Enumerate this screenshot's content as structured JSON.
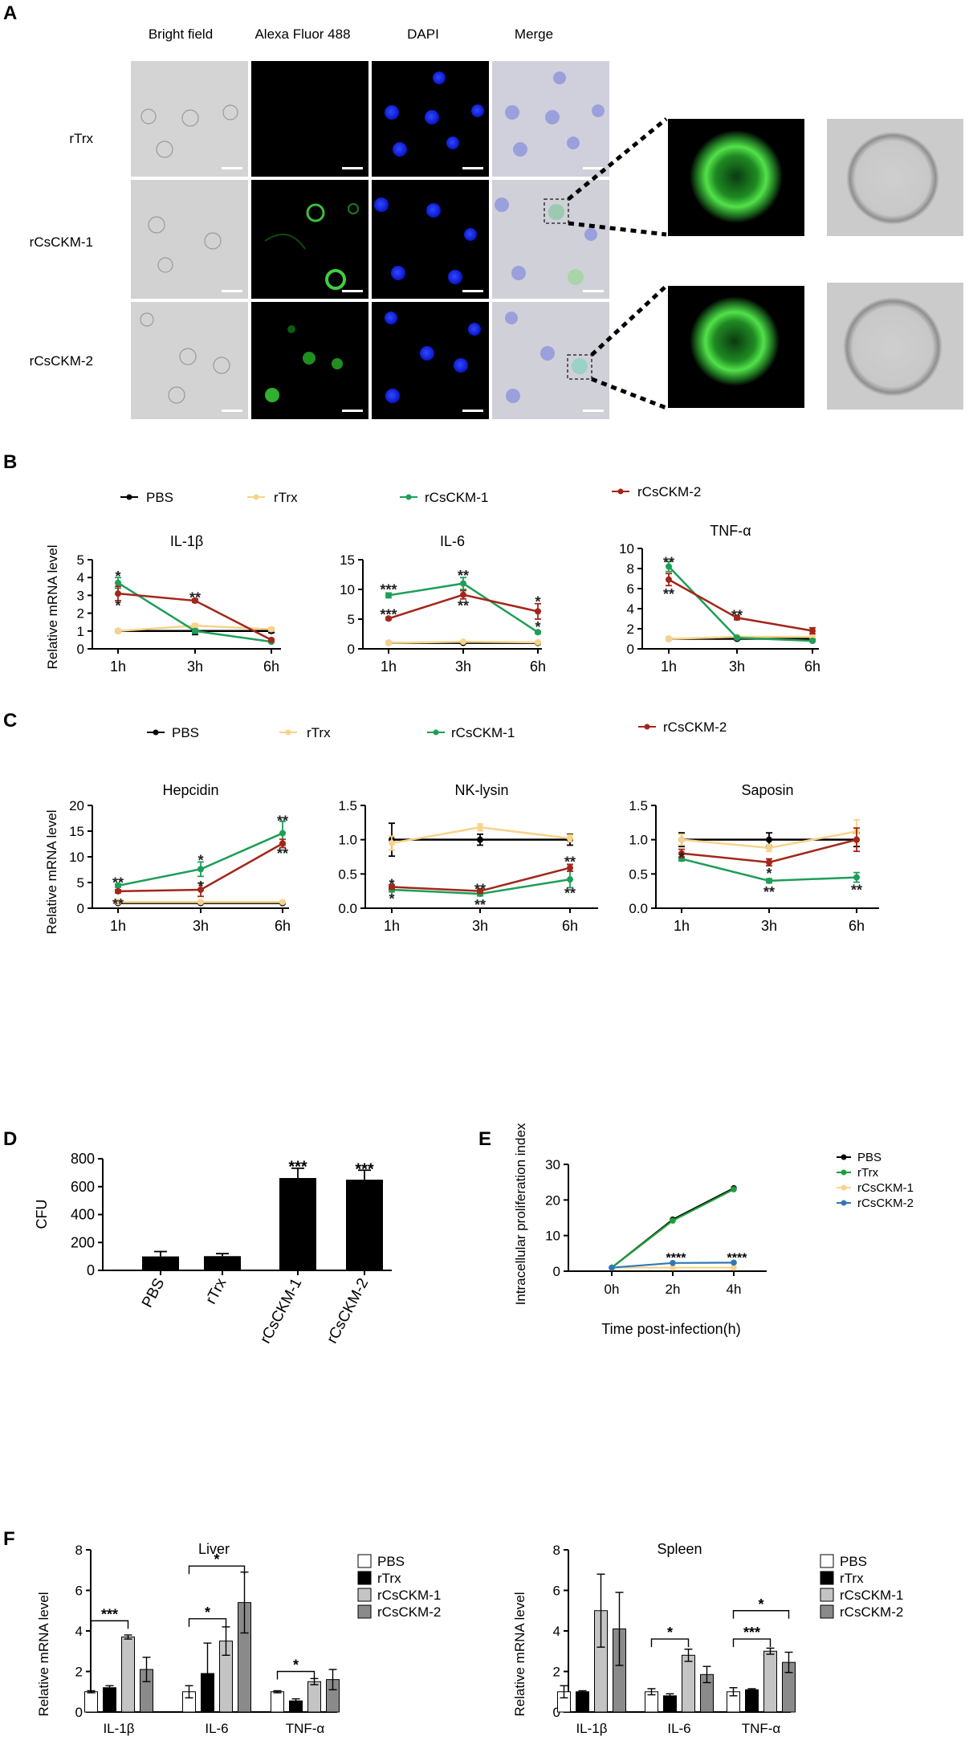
{
  "panels": {
    "a": {
      "letter": "A",
      "columns": [
        "Bright field",
        "Alexa Fluor 488",
        "DAPI",
        "Merge"
      ],
      "rows": [
        "rTrx",
        "rCsCKM-1",
        "rCsCKM-2"
      ]
    },
    "b": {
      "letter": "B",
      "legend": [
        "PBS",
        "rTrx",
        "rCsCKM-1",
        "rCsCKM-2"
      ],
      "ylabel": "Relative  mRNA level"
    },
    "c": {
      "letter": "C",
      "legend": [
        "PBS",
        "rTrx",
        "rCsCKM-1",
        "rCsCKM-2"
      ],
      "ylabel": "Relative  mRNA level"
    },
    "d": {
      "letter": "D"
    },
    "e": {
      "letter": "E"
    },
    "f": {
      "letter": "F"
    }
  },
  "colors": {
    "PBS": "#000000",
    "rTrx": "#f7d38a",
    "rCsCKM-1": "#1e9e58",
    "rCsCKM-2": "#a3261b",
    "e_PBS": "#000000",
    "e_rTrx": "#1e9e3a",
    "e_rCsCKM-1": "#f7d38a",
    "e_rCsCKM-2": "#2f78b5",
    "bar_PBS": "#ffffff",
    "bar_rTrx": "#000000",
    "bar_rCsCKM-1": "#c4c4c4",
    "bar_rCsCKM-2": "#8a8a8a"
  },
  "chart_data": [
    {
      "id": "B1",
      "type": "line",
      "title": "IL-1β",
      "x": [
        "1h",
        "3h",
        "6h"
      ],
      "ylim": [
        0,
        5
      ],
      "yticks": [
        0,
        1,
        2,
        3,
        4,
        5
      ],
      "ylabel": "Relative  mRNA level",
      "series": [
        {
          "name": "PBS",
          "values": [
            1.0,
            1.0,
            1.0
          ],
          "errors": [
            0.0,
            0.2,
            0.1
          ]
        },
        {
          "name": "rTrx",
          "values": [
            1.0,
            1.3,
            1.1
          ],
          "errors": [
            0.1,
            0.1,
            0.1
          ]
        },
        {
          "name": "rCsCKM-1",
          "values": [
            3.7,
            1.0,
            0.4
          ],
          "errors": [
            0.3,
            0.1,
            0.05
          ]
        },
        {
          "name": "rCsCKM-2",
          "values": [
            3.1,
            2.7,
            0.5
          ],
          "errors": [
            0.4,
            0.1,
            0.05
          ]
        }
      ],
      "annotations": [
        {
          "text": "*",
          "x": "1h",
          "y": 4.15
        },
        {
          "text": "*",
          "x": "1h",
          "y": 2.5
        },
        {
          "text": "**",
          "x": "3h",
          "y": 2.95
        }
      ]
    },
    {
      "id": "B2",
      "type": "line",
      "title": "IL-6",
      "x": [
        "1h",
        "3h",
        "6h"
      ],
      "ylim": [
        0,
        15
      ],
      "yticks": [
        0,
        5,
        10,
        15
      ],
      "series": [
        {
          "name": "PBS",
          "values": [
            1.0,
            1.0,
            1.0
          ],
          "errors": [
            0.1,
            0.1,
            0.1
          ]
        },
        {
          "name": "rTrx",
          "values": [
            1.0,
            1.2,
            1.1
          ],
          "errors": [
            0.1,
            0.1,
            0.1
          ]
        },
        {
          "name": "rCsCKM-1",
          "values": [
            9.0,
            11.0,
            2.8
          ],
          "errors": [
            0.4,
            1.0,
            0.2
          ]
        },
        {
          "name": "rCsCKM-2",
          "values": [
            5.1,
            9.1,
            6.3
          ],
          "errors": [
            0.2,
            0.7,
            1.3
          ]
        }
      ],
      "annotations": [
        {
          "text": "***",
          "x": "1h",
          "y": 10.2
        },
        {
          "text": "***",
          "x": "1h",
          "y": 6.0
        },
        {
          "text": "**",
          "x": "3h",
          "y": 12.6
        },
        {
          "text": "**",
          "x": "3h",
          "y": 7.5
        },
        {
          "text": "*",
          "x": "6h",
          "y": 8.2
        },
        {
          "text": "*",
          "x": "6h",
          "y": 3.9
        }
      ]
    },
    {
      "id": "B3",
      "type": "line",
      "title": "TNF-α",
      "x": [
        "1h",
        "3h",
        "6h"
      ],
      "ylim": [
        0,
        10
      ],
      "yticks": [
        0,
        2,
        4,
        6,
        8,
        10
      ],
      "series": [
        {
          "name": "PBS",
          "values": [
            1.0,
            1.0,
            1.0
          ],
          "errors": [
            0.05,
            0.1,
            0.1
          ]
        },
        {
          "name": "rTrx",
          "values": [
            1.0,
            1.2,
            1.2
          ],
          "errors": [
            0.05,
            0.1,
            0.1
          ]
        },
        {
          "name": "rCsCKM-1",
          "values": [
            8.2,
            1.1,
            0.8
          ],
          "errors": [
            0.5,
            0.1,
            0.1
          ]
        },
        {
          "name": "rCsCKM-2",
          "values": [
            6.9,
            3.1,
            1.8
          ],
          "errors": [
            0.6,
            0.2,
            0.3
          ]
        }
      ],
      "annotations": [
        {
          "text": "**",
          "x": "1h",
          "y": 8.75
        },
        {
          "text": "**",
          "x": "1h",
          "y": 5.6
        },
        {
          "text": "**",
          "x": "3h",
          "y": 3.5
        }
      ]
    },
    {
      "id": "C1",
      "type": "line",
      "title": "Hepcidin",
      "x": [
        "1h",
        "3h",
        "6h"
      ],
      "ylim": [
        0,
        20
      ],
      "yticks": [
        0,
        5,
        10,
        15,
        20
      ],
      "ylabel": "Relative  mRNA level",
      "series": [
        {
          "name": "PBS",
          "values": [
            1.0,
            1.0,
            1.0
          ],
          "errors": [
            0.1,
            0.1,
            0.1
          ]
        },
        {
          "name": "rTrx",
          "values": [
            1.2,
            1.2,
            1.2
          ],
          "errors": [
            0.1,
            0.1,
            0.1
          ]
        },
        {
          "name": "rCsCKM-1",
          "values": [
            4.4,
            7.6,
            14.6
          ],
          "errors": [
            0.3,
            1.4,
            2.3
          ]
        },
        {
          "name": "rCsCKM-2",
          "values": [
            3.3,
            3.6,
            12.6
          ],
          "errors": [
            0.3,
            1.3,
            0.8
          ]
        }
      ],
      "annotations": [
        {
          "text": "**",
          "x": "1h",
          "y": 5.2
        },
        {
          "text": "**",
          "x": "1h",
          "y": 1.1
        },
        {
          "text": "*",
          "x": "3h",
          "y": 9.6
        },
        {
          "text": "*",
          "x": "3h",
          "y": 4.5
        },
        {
          "text": "**",
          "x": "6h",
          "y": 17.3
        },
        {
          "text": "**",
          "x": "6h",
          "y": 10.9
        }
      ]
    },
    {
      "id": "C2",
      "type": "line",
      "title": "NK-lysin",
      "x": [
        "1h",
        "3h",
        "6h"
      ],
      "ylim": [
        0,
        1.5
      ],
      "yticks": [
        0.0,
        0.5,
        1.0,
        1.5
      ],
      "series": [
        {
          "name": "PBS",
          "values": [
            1.0,
            1.0,
            1.0
          ],
          "errors": [
            0.24,
            0.08,
            0.08
          ]
        },
        {
          "name": "rTrx",
          "values": [
            0.95,
            1.18,
            1.02
          ],
          "errors": [
            0.1,
            0.05,
            0.05
          ]
        },
        {
          "name": "rCsCKM-1",
          "values": [
            0.27,
            0.21,
            0.42
          ],
          "errors": [
            0.03,
            0.03,
            0.12
          ]
        },
        {
          "name": "rCsCKM-2",
          "values": [
            0.31,
            0.25,
            0.59
          ],
          "errors": [
            0.03,
            0.03,
            0.05
          ]
        }
      ],
      "annotations": [
        {
          "text": "*",
          "x": "1h",
          "y": 0.37
        },
        {
          "text": "*",
          "x": "1h",
          "y": 0.16
        },
        {
          "text": "**",
          "x": "3h",
          "y": 0.3
        },
        {
          "text": "**",
          "x": "3h",
          "y": 0.07
        },
        {
          "text": "**",
          "x": "6h",
          "y": 0.7
        },
        {
          "text": "**",
          "x": "6h",
          "y": 0.24
        }
      ]
    },
    {
      "id": "C3",
      "type": "line",
      "title": "Saposin",
      "x": [
        "1h",
        "3h",
        "6h"
      ],
      "ylim": [
        0,
        1.5
      ],
      "yticks": [
        0.0,
        0.5,
        1.0,
        1.5
      ],
      "series": [
        {
          "name": "PBS",
          "values": [
            1.0,
            1.0,
            1.0
          ],
          "errors": [
            0.1,
            0.1,
            0.1
          ]
        },
        {
          "name": "rTrx",
          "values": [
            1.0,
            0.88,
            1.12
          ],
          "errors": [
            0.08,
            0.05,
            0.17
          ]
        },
        {
          "name": "rCsCKM-1",
          "values": [
            0.72,
            0.4,
            0.45
          ],
          "errors": [
            0.03,
            0.03,
            0.07
          ]
        },
        {
          "name": "rCsCKM-2",
          "values": [
            0.8,
            0.67,
            1.0
          ],
          "errors": [
            0.06,
            0.05,
            0.17
          ]
        }
      ],
      "annotations": [
        {
          "text": "*",
          "x": "1h",
          "y": 0.76
        },
        {
          "text": "*",
          "x": "3h",
          "y": 0.53
        },
        {
          "text": "**",
          "x": "3h",
          "y": 0.26
        },
        {
          "text": "**",
          "x": "6h",
          "y": 0.29
        }
      ]
    },
    {
      "id": "D",
      "type": "bar",
      "categories": [
        "PBS",
        "rTrx",
        "rCsCKM-1",
        "rCsCKM-2"
      ],
      "values": [
        100,
        102,
        662,
        650
      ],
      "errors": [
        35,
        18,
        70,
        68
      ],
      "ylim": [
        0,
        800
      ],
      "yticks": [
        0,
        200,
        400,
        600,
        800
      ],
      "ylabel": "CFU",
      "annotations": [
        {
          "text": "***",
          "category": "rCsCKM-1",
          "y": 750
        },
        {
          "text": "***",
          "category": "rCsCKM-2",
          "y": 735
        }
      ]
    },
    {
      "id": "E",
      "type": "line",
      "x": [
        "0h",
        "2h",
        "4h"
      ],
      "ylim": [
        0,
        30
      ],
      "yticks": [
        0,
        10,
        20,
        30
      ],
      "ylabel": "Intracellular proliferation index",
      "xlabel": "Time post-infection(h)",
      "legend": [
        "PBS",
        "rTrx",
        "rCsCKM-1",
        "rCsCKM-2"
      ],
      "series": [
        {
          "name": "PBS",
          "values": [
            1.0,
            14.5,
            23.3
          ],
          "errors": [
            0,
            0.6,
            0.6
          ]
        },
        {
          "name": "rTrx",
          "values": [
            1.0,
            14.2,
            23.0
          ],
          "errors": [
            0,
            0.6,
            0.6
          ]
        },
        {
          "name": "rCsCKM-1",
          "values": [
            1.0,
            1.0,
            1.0
          ],
          "errors": [
            0,
            0.1,
            0.1
          ]
        },
        {
          "name": "rCsCKM-2",
          "values": [
            1.0,
            2.3,
            2.4
          ],
          "errors": [
            0,
            0.1,
            0.1
          ]
        }
      ],
      "annotations": [
        {
          "text": "****",
          "x": "2h",
          "y": 3.5
        },
        {
          "text": "****",
          "x": "4h",
          "y": 3.5
        }
      ]
    },
    {
      "id": "F1",
      "type": "bar",
      "title": "Liver",
      "categories": [
        "IL-1β",
        "IL-6",
        "TNF-α"
      ],
      "series": [
        {
          "name": "PBS",
          "values": [
            1.0,
            1.0,
            1.0
          ],
          "errors": [
            0.05,
            0.3,
            0.05
          ]
        },
        {
          "name": "rTrx",
          "values": [
            1.2,
            1.9,
            0.55
          ],
          "errors": [
            0.1,
            1.5,
            0.1
          ]
        },
        {
          "name": "rCsCKM-1",
          "values": [
            3.7,
            3.5,
            1.5
          ],
          "errors": [
            0.1,
            0.7,
            0.15
          ]
        },
        {
          "name": "rCsCKM-2",
          "values": [
            2.1,
            5.4,
            1.6
          ],
          "errors": [
            0.6,
            1.5,
            0.5
          ]
        }
      ],
      "ylim": [
        0,
        8
      ],
      "yticks": [
        0,
        2,
        4,
        6,
        8
      ],
      "ylabel": "Relative  mRNA level",
      "legend": [
        "PBS",
        "rTrx",
        "rCsCKM-1",
        "rCsCKM-2"
      ],
      "brackets": [
        {
          "text": "***",
          "category": "IL-1β",
          "from": "PBS",
          "to": "rCsCKM-1",
          "y": 4.5
        },
        {
          "text": "*",
          "category": "IL-6",
          "from": "PBS",
          "to": "rCsCKM-1",
          "y": 4.6
        },
        {
          "text": "*",
          "category": "IL-6",
          "from": "PBS",
          "to": "rCsCKM-2",
          "y": 7.2
        },
        {
          "text": "*",
          "category": "TNF-α",
          "from": "PBS",
          "to": "rCsCKM-1",
          "y": 2.0
        }
      ]
    },
    {
      "id": "F2",
      "type": "bar",
      "title": "Spleen",
      "categories": [
        "IL-1β",
        "IL-6",
        "TNF-α"
      ],
      "series": [
        {
          "name": "PBS",
          "values": [
            1.0,
            1.0,
            1.0
          ],
          "errors": [
            0.3,
            0.15,
            0.2
          ]
        },
        {
          "name": "rTrx",
          "values": [
            1.0,
            0.8,
            1.1
          ],
          "errors": [
            0.05,
            0.1,
            0.05
          ]
        },
        {
          "name": "rCsCKM-1",
          "values": [
            5.0,
            2.8,
            3.0
          ],
          "errors": [
            1.8,
            0.3,
            0.15
          ]
        },
        {
          "name": "rCsCKM-2",
          "values": [
            4.1,
            1.85,
            2.45
          ],
          "errors": [
            1.8,
            0.4,
            0.5
          ]
        }
      ],
      "ylim": [
        0,
        8
      ],
      "yticks": [
        0,
        2,
        4,
        6,
        8
      ],
      "ylabel": "Relative  mRNA level",
      "legend": [
        "PBS",
        "rTrx",
        "rCsCKM-1",
        "rCsCKM-2"
      ],
      "brackets": [
        {
          "text": "*",
          "category": "IL-6",
          "from": "PBS",
          "to": "rCsCKM-1",
          "y": 3.6
        },
        {
          "text": "***",
          "category": "TNF-α",
          "from": "PBS",
          "to": "rCsCKM-1",
          "y": 3.6
        },
        {
          "text": "*",
          "category": "TNF-α",
          "from": "PBS",
          "to": "rCsCKM-2",
          "y": 5.0
        }
      ]
    }
  ]
}
